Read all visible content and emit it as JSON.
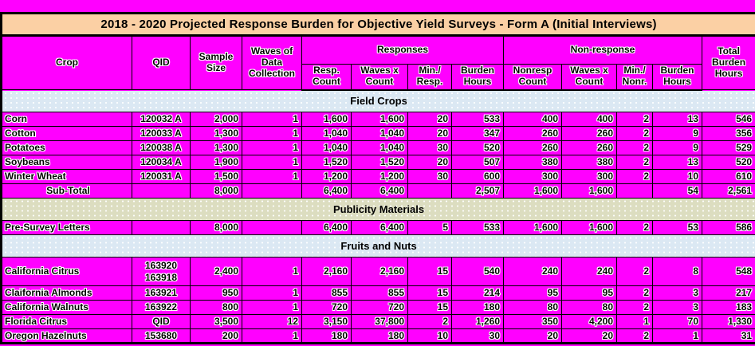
{
  "title": "2018 - 2020 Projected Response Burden for Objective Yield Surveys - Form A (Initial Interviews)",
  "colors": {
    "cell_magenta": "#ff00ff",
    "title_peach": "#fbd0a4",
    "section_blue": "#dbe8f3",
    "section_olive": "#dcddc0",
    "border_black": "#000000"
  },
  "columns": {
    "crop": "Crop",
    "qid": "QID",
    "sample_size": "Sample\nSize",
    "waves": "Waves of\nData\nCollection",
    "responses": "Responses",
    "nonresponse": "Non-response",
    "resp_count": "Resp.\nCount",
    "resp_waves_x_count": "Waves x\nCount",
    "min_resp": "Min./\nResp.",
    "resp_burden_hours": "Burden\nHours",
    "nonresp_count": "Nonresp\nCount",
    "nonresp_waves_x_count": "Waves x\nCount",
    "min_nonr": "Min./\nNonr.",
    "nonresp_burden_hours": "Burden\nHours",
    "total_burden_hours": "Total\nBurden\nHours"
  },
  "sections": [
    {
      "name": "Field Crops",
      "band": "band-blue",
      "rows": [
        {
          "crop": "Corn",
          "qid": "120032 A",
          "values": [
            "2,000",
            "1",
            "1,600",
            "1,600",
            "20",
            "533",
            "400",
            "400",
            "2",
            "13",
            "546"
          ]
        },
        {
          "crop": "Cotton",
          "qid": "120033 A",
          "values": [
            "1,300",
            "1",
            "1,040",
            "1,040",
            "20",
            "347",
            "260",
            "260",
            "2",
            "9",
            "356"
          ]
        },
        {
          "crop": "Potatoes",
          "qid": "120038 A",
          "values": [
            "1,300",
            "1",
            "1,040",
            "1,040",
            "30",
            "520",
            "260",
            "260",
            "2",
            "9",
            "529"
          ]
        },
        {
          "crop": "Soybeans",
          "qid": "120034 A",
          "values": [
            "1,900",
            "1",
            "1,520",
            "1,520",
            "20",
            "507",
            "380",
            "380",
            "2",
            "13",
            "520"
          ]
        },
        {
          "crop": "Winter Wheat",
          "qid": "120031 A",
          "values": [
            "1,500",
            "1",
            "1,200",
            "1,200",
            "30",
            "600",
            "300",
            "300",
            "2",
            "10",
            "610"
          ]
        },
        {
          "crop": "Sub-Total",
          "qid": "",
          "values": [
            "8,000",
            "",
            "6,400",
            "6,400",
            "",
            "2,507",
            "1,600",
            "1,600",
            "",
            "54",
            "2,561"
          ],
          "style": "subtotal"
        }
      ]
    },
    {
      "name": "Publicity Materials",
      "band": "band-olive",
      "rows": [
        {
          "crop": "Pre-Survey Letters",
          "qid": "",
          "values": [
            "8,000",
            "",
            "6,400",
            "6,400",
            "5",
            "533",
            "1,600",
            "1,600",
            "2",
            "53",
            "586"
          ]
        }
      ]
    },
    {
      "name": "Fruits and Nuts",
      "band": "band-blue",
      "rows": [
        {
          "crop": "California Citrus",
          "qid": "163920\n163918",
          "values": [
            "2,400",
            "1",
            "2,160",
            "2,160",
            "15",
            "540",
            "240",
            "240",
            "2",
            "8",
            "548"
          ],
          "style": "tall"
        },
        {
          "crop": "Claifornia Almonds",
          "qid": "163921",
          "values": [
            "950",
            "1",
            "855",
            "855",
            "15",
            "214",
            "95",
            "95",
            "2",
            "3",
            "217"
          ]
        },
        {
          "crop": "California Walnuts",
          "qid": "163922",
          "values": [
            "800",
            "1",
            "720",
            "720",
            "15",
            "180",
            "80",
            "80",
            "2",
            "3",
            "183"
          ]
        },
        {
          "crop": "Florida Citrus",
          "qid": "QID",
          "values": [
            "3,500",
            "12",
            "3,150",
            "37,800",
            "2",
            "1,260",
            "350",
            "4,200",
            "1",
            "70",
            "1,330"
          ]
        },
        {
          "crop": "Oregon Hazelnuts",
          "qid": "153680",
          "values": [
            "200",
            "1",
            "180",
            "180",
            "10",
            "30",
            "20",
            "20",
            "2",
            "1",
            "31"
          ]
        }
      ]
    }
  ]
}
